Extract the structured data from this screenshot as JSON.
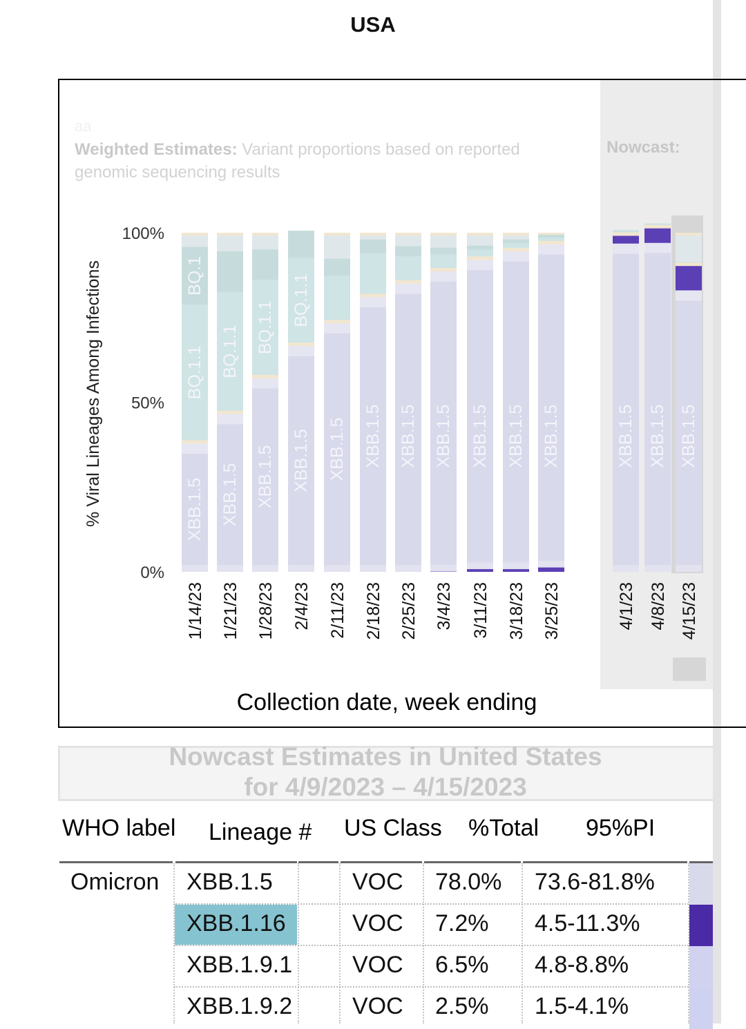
{
  "page": {
    "title": "USA"
  },
  "chart_header": {
    "faint_text": "aa",
    "weighted_bold": "Weighted Estimates:",
    "weighted_rest": " Variant proportions based on reported genomic sequencing results",
    "nowcast_label": "Nowcast:"
  },
  "chart_data": {
    "type": "bar",
    "stacked": true,
    "title": "USA",
    "ylabel": "% Viral Lineages Among Infections",
    "xlabel": "Collection date, week ending",
    "ylim": [
      0,
      100
    ],
    "y_ticks": [
      "0%",
      "50%",
      "100%"
    ],
    "categories": [
      "1/14/23",
      "1/21/23",
      "1/28/23",
      "2/4/23",
      "2/11/23",
      "2/18/23",
      "2/25/23",
      "3/4/23",
      "3/11/23",
      "3/18/23",
      "3/25/23",
      "4/1/23",
      "4/8/23",
      "4/15/23"
    ],
    "nowcast_categories": [
      "4/1/23",
      "4/8/23",
      "4/15/23"
    ],
    "bar_labels": [
      [
        "XBB.1.5",
        "BQ.1.1",
        "BQ.1"
      ],
      [
        "XBB.1.5",
        "BQ.1.1"
      ],
      [
        "XBB.1.5",
        "BQ.1.1"
      ],
      [
        "XBB.1.5",
        "BQ.1.1"
      ],
      [
        "XBB.1.5"
      ],
      [
        "XBB.1.5"
      ],
      [
        "XBB.1.5"
      ],
      [
        "XBB.1.5"
      ],
      [
        "XBB.1.5"
      ],
      [
        "XBB.1.5"
      ],
      [
        "XBB.1.5"
      ],
      [
        "XBB.1.5"
      ],
      [
        "XBB.1.5"
      ],
      [
        "XBB.1.5"
      ]
    ],
    "segment_colors": {
      "XBB.1.16": "#5b3fb5",
      "XBB.1.5": "#d8d9ea",
      "other_xbb": "#e6e6f2",
      "BQ.1.1": "#cfe4e4",
      "BQ.1": "#c6dcdc",
      "other": "#dfe7ea",
      "minor": "#f2e6cf"
    },
    "series": [
      {
        "name": "XBB.1.16",
        "values": [
          0,
          0,
          0,
          0,
          0,
          0,
          0,
          0.1,
          0.8,
          0.8,
          1.3,
          2.3,
          4.3,
          7.2
        ]
      },
      {
        "name": "XBB.1.5",
        "values": [
          32.8,
          41.5,
          52.1,
          61.6,
          68.3,
          76.0,
          80.0,
          83.5,
          86.2,
          88.7,
          90.3,
          91.8,
          92.0,
          78.0
        ]
      },
      {
        "name": "BQ.1.1",
        "values": [
          40.0,
          35.0,
          28.0,
          25.0,
          13.0,
          12.0,
          7.0,
          4.0,
          2.0,
          1.5,
          1.0,
          0.3,
          0.2,
          0.1
        ]
      },
      {
        "name": "BQ.1",
        "values": [
          17.0,
          12.0,
          9.0,
          8.0,
          5.0,
          4.0,
          3.0,
          2.0,
          1.2,
          1.0,
          0.8,
          0.3,
          0.2,
          0.1
        ]
      }
    ]
  },
  "nowcast_table": {
    "title": "Nowcast Estimates in United States",
    "subtitle": "for 4/9/2023 – 4/15/2023",
    "headers": [
      "WHO label",
      "Lineage #",
      "US Class",
      "%Total",
      "95%PI"
    ],
    "who_label": "Omicron",
    "rows": [
      {
        "lineage": "XBB.1.5",
        "us_class": "VOC",
        "total": "78.0%",
        "pi": "73.6-81.8%",
        "color": "#d8d9ea",
        "highlight": false
      },
      {
        "lineage": "XBB.1.16",
        "us_class": "VOC",
        "total": "7.2%",
        "pi": "4.5-11.3%",
        "color": "#4b2aa6",
        "highlight": true
      },
      {
        "lineage": "XBB.1.9.1",
        "us_class": "VOC",
        "total": "6.5%",
        "pi": "4.8-8.8%",
        "color": "#d0d2ef",
        "highlight": false
      },
      {
        "lineage": "XBB.1.9.2",
        "us_class": "VOC",
        "total": "2.5%",
        "pi": "1.5-4.1%",
        "color": "#cfd1f0",
        "highlight": false
      }
    ]
  }
}
